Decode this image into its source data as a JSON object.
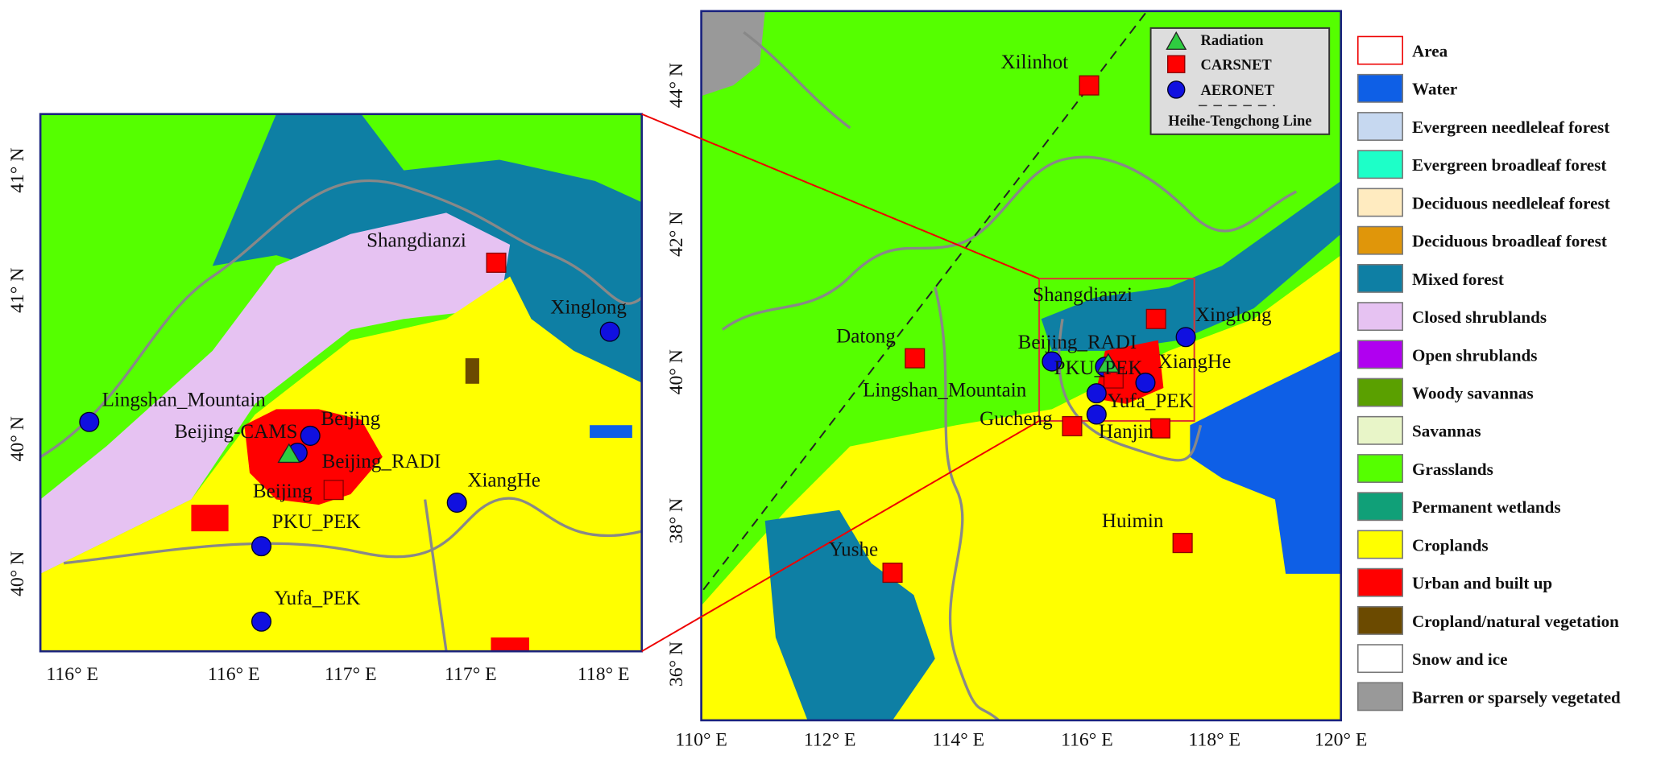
{
  "left_map": {
    "y_ticks": [
      "41° N",
      "41° N",
      "40° N",
      "40° N"
    ],
    "x_ticks": [
      "116° E",
      "116° E",
      "117° E",
      "117° E",
      "118° E"
    ],
    "sites": [
      "Shangdianzi",
      "Xinglong",
      "Lingshan_Mountain",
      "Beijing",
      "Beijing-CAMS",
      "Beijing_RADI",
      "Beijing",
      "XiangHe",
      "PKU_PEK",
      "Yufa_PEK"
    ]
  },
  "right_map": {
    "y_ticks": [
      "44° N",
      "42° N",
      "40° N",
      "38° N",
      "36° N"
    ],
    "x_ticks": [
      "110° E",
      "112° E",
      "114° E",
      "116° E",
      "118° E",
      "120° E"
    ],
    "sites": [
      "Xilinhot",
      "Shangdianzi",
      "Xinglong",
      "Datong",
      "Beijing_RADI",
      "PKU_PEK",
      "XiangHe",
      "Lingshan_Mountain",
      "Yufa_PEK",
      "Gucheng",
      "Hanjin",
      "Huimin",
      "Yushe"
    ],
    "inset_legend": {
      "items": [
        "Radiation",
        "CARSNET",
        "AERONET"
      ],
      "line": "Heihe-Tengchong Line"
    }
  },
  "legend": {
    "items": [
      "Area",
      "Water",
      "Evergreen needleleaf forest",
      "Evergreen broadleaf forest",
      "Deciduous needleleaf forest",
      "Deciduous broadleaf forest",
      "Mixed forest",
      "Closed shrublands",
      "Open shrublands",
      "Woody savannas",
      "Savannas",
      "Grasslands",
      "Permanent wetlands",
      "Croplands",
      "Urban and built up",
      "Cropland/natural vegetation",
      "Snow and ice",
      "Barren or sparsely vegetated"
    ]
  }
}
